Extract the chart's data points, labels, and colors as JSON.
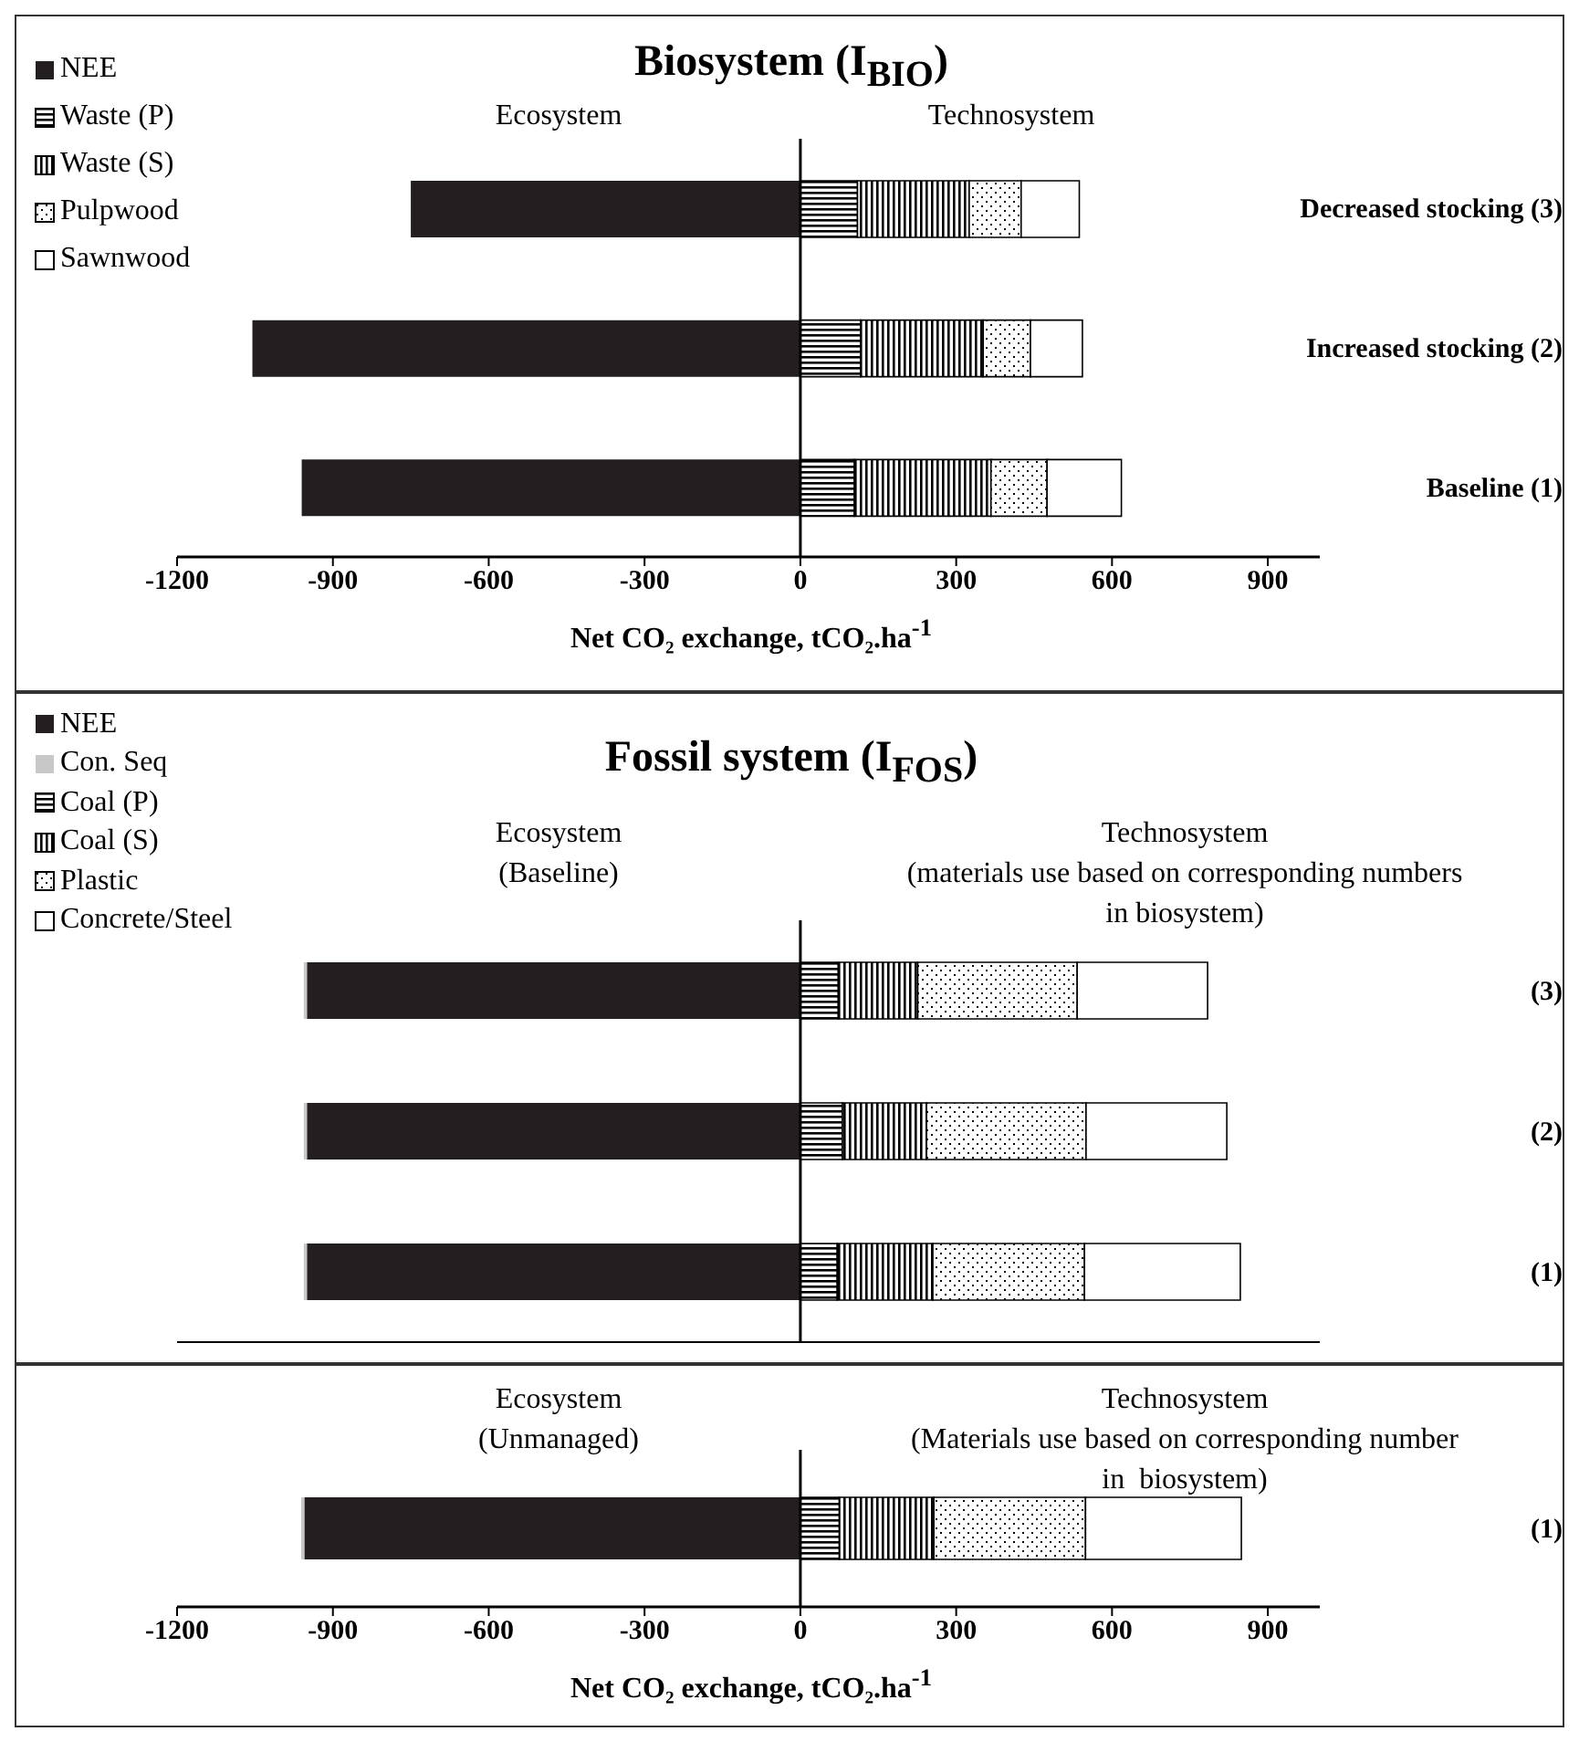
{
  "chart_data": [
    {
      "type": "bar",
      "orientation": "horizontal",
      "stacked": true,
      "title": "Biosystem (I$_{BIO}$)",
      "xlabel": "Net CO₂ exchange, tCO₂.ha$^{-1}$",
      "categories": [
        "Decreased stocking (3)",
        "Increased stocking (2)",
        "Baseline (1)"
      ],
      "series": [
        {
          "name": "NEE",
          "color": "#231f20",
          "values": [
            -750,
            -1055,
            -960
          ]
        },
        {
          "name": "Waste (P)",
          "color": "#000000",
          "values": [
            110,
            116,
            104
          ]
        },
        {
          "name": "Waste (S)",
          "color": "#000000",
          "values": [
            215,
            236,
            263
          ]
        },
        {
          "name": "Pulpwood",
          "color": "#000000",
          "values": [
            100,
            91,
            108
          ]
        },
        {
          "name": "Sawnwood",
          "color": "#ffffff",
          "values": [
            112,
            100,
            143
          ]
        }
      ],
      "xlim": [
        -1200,
        1000
      ],
      "xticks": [
        -1200,
        -900,
        -600,
        -300,
        0,
        300,
        600,
        900
      ],
      "ref_lines": [
        {
          "axis": "x",
          "value": 0,
          "color": "#000000"
        }
      ],
      "annotations": [
        "Ecosystem",
        "Technosystem"
      ],
      "legend": "top left"
    },
    {
      "type": "bar",
      "orientation": "horizontal",
      "stacked": true,
      "title": "Fossil system (I$_{FOS}$)",
      "categories": [
        "(3)",
        "(2)",
        "(1)"
      ],
      "series": [
        {
          "name": "NEE",
          "color": "#231f20",
          "values": [
            -950,
            -950,
            -950
          ]
        },
        {
          "name": "Con. Seq",
          "color": "#c8c8c8",
          "values": [
            -6,
            -6,
            -6
          ]
        },
        {
          "name": "Coal (P)",
          "color": "#000000",
          "values": [
            73,
            81,
            71
          ]
        },
        {
          "name": "Coal (S)",
          "color": "#000000",
          "values": [
            153,
            162,
            184
          ]
        },
        {
          "name": "Plastic",
          "color": "#000000",
          "values": [
            307,
            307,
            292
          ]
        },
        {
          "name": "Concrete/Steel",
          "color": "#ffffff",
          "values": [
            251,
            271,
            300
          ]
        }
      ],
      "xlim": [
        -1200,
        1000
      ],
      "xticks": [
        -1200,
        -900,
        -600,
        -300,
        0,
        300,
        600,
        900
      ],
      "tick_labels": "y",
      "ref_lines": [
        {
          "axis": "x",
          "value": 0,
          "color": "#000000"
        }
      ],
      "annotations": [
        "Ecosystem\n(Baseline)",
        "Technosystem\n(materials use based on corresponding numbers\nin biosystem)"
      ],
      "legend": "top left"
    },
    {
      "type": "bar",
      "orientation": "horizontal",
      "stacked": true,
      "xlabel": "Net CO₂ exchange, tCO₂.ha$^{-1}$",
      "categories": [
        "(1)"
      ],
      "series": [
        {
          "color": "#231f20",
          "values": [
            -955
          ]
        },
        {
          "color": "#c8c8c8",
          "values": [
            -6
          ]
        },
        {
          "color": "#000000",
          "values": [
            75
          ]
        },
        {
          "color": "#000000",
          "values": [
            182
          ]
        },
        {
          "color": "#000000",
          "values": [
            292
          ]
        },
        {
          "color": "#ffffff",
          "values": [
            300
          ]
        }
      ],
      "xlim": [
        -1200,
        1000
      ],
      "xticks": [
        -1200,
        -900,
        -600,
        -300,
        0,
        300,
        600,
        900
      ],
      "ref_lines": [
        {
          "axis": "x",
          "value": 0,
          "color": "#000000"
        }
      ],
      "annotations": [
        "Ecosystem\n(Unmanaged)",
        "Technosystem\n(Materials use based on corresponding number\nin  biosystem)"
      ]
    }
  ]
}
